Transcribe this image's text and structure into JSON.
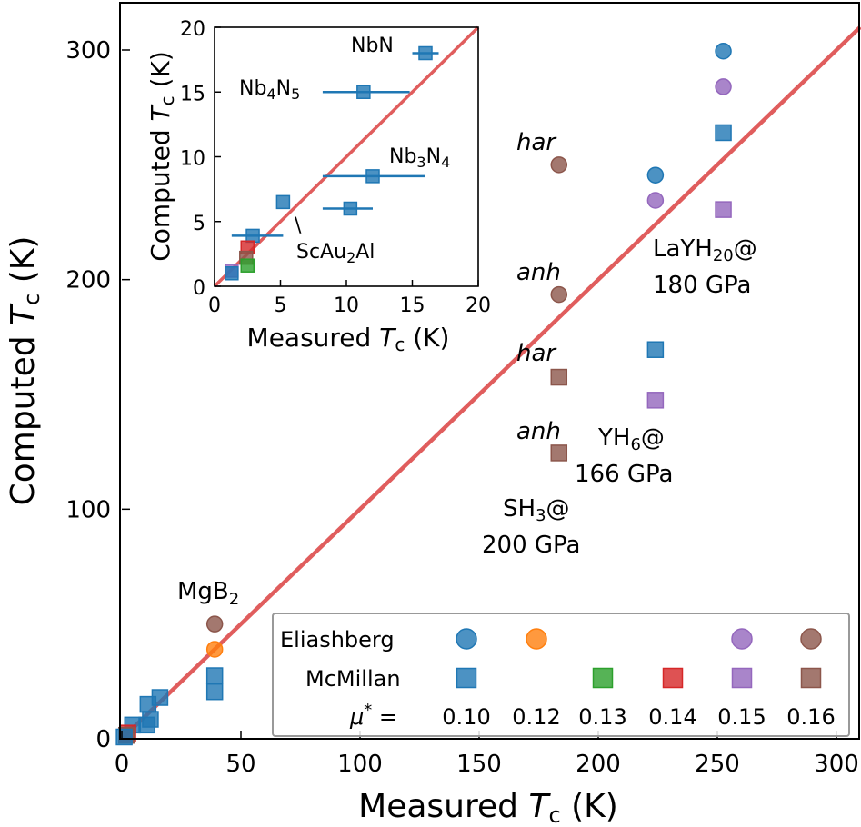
{
  "colors": {
    "mu_010": "#1f77b4",
    "mu_012": "#ff7f0e",
    "mu_013": "#2ca02c",
    "mu_014": "#d62728",
    "mu_015": "#9467bd",
    "mu_016": "#8c564b",
    "diagonal": "#d62728"
  },
  "chart_data": [
    {
      "id": "main",
      "type": "scatter",
      "title": "",
      "xlabel": "Measured",
      "ylabel": "Computed",
      "x_sym": "T",
      "x_sub": "c",
      "y_sym": "T",
      "y_sub": "c",
      "unit": "(K)",
      "xlim": [
        0,
        320
      ],
      "ylim": [
        0,
        320
      ],
      "xticks": [
        "0",
        "50",
        "100",
        "150",
        "200",
        "250",
        "300"
      ],
      "xtick_values": [
        0,
        50,
        100,
        150,
        200,
        250,
        300
      ],
      "yticks": [
        "0",
        "100",
        "200",
        "300"
      ],
      "ytick_values": [
        0,
        100,
        200,
        300
      ],
      "diagonal": true,
      "points": [
        {
          "x": 252.5,
          "y": 299.5,
          "marker": "circle",
          "mu": "mu_010"
        },
        {
          "x": 252.5,
          "y": 284.0,
          "marker": "circle",
          "mu": "mu_015"
        },
        {
          "x": 252.5,
          "y": 264.0,
          "marker": "square",
          "mu": "mu_010"
        },
        {
          "x": 252.5,
          "y": 230.5,
          "marker": "square",
          "mu": "mu_015"
        },
        {
          "x": 224.0,
          "y": 245.5,
          "marker": "circle",
          "mu": "mu_010"
        },
        {
          "x": 224.0,
          "y": 234.5,
          "marker": "circle",
          "mu": "mu_015"
        },
        {
          "x": 224.0,
          "y": 169.5,
          "marker": "square",
          "mu": "mu_010"
        },
        {
          "x": 224.0,
          "y": 147.5,
          "marker": "square",
          "mu": "mu_015"
        },
        {
          "x": 183.5,
          "y": 250.0,
          "marker": "circle",
          "mu": "mu_016"
        },
        {
          "x": 183.5,
          "y": 193.5,
          "marker": "circle",
          "mu": "mu_016"
        },
        {
          "x": 183.5,
          "y": 157.5,
          "marker": "square",
          "mu": "mu_016"
        },
        {
          "x": 183.5,
          "y": 124.5,
          "marker": "square",
          "mu": "mu_016"
        },
        {
          "x": 39.0,
          "y": 50.0,
          "marker": "circle",
          "mu": "mu_016"
        },
        {
          "x": 39.0,
          "y": 39.0,
          "marker": "circle",
          "mu": "mu_012"
        },
        {
          "x": 39.0,
          "y": 27.5,
          "marker": "square",
          "mu": "mu_010"
        },
        {
          "x": 39.0,
          "y": 20.5,
          "marker": "square",
          "mu": "mu_010"
        },
        {
          "x": 16.0,
          "y": 18.0,
          "marker": "square",
          "mu": "mu_010"
        },
        {
          "x": 11.0,
          "y": 15.0,
          "marker": "square",
          "mu": "mu_010"
        },
        {
          "x": 12.0,
          "y": 8.5,
          "marker": "square",
          "mu": "mu_010"
        },
        {
          "x": 10.5,
          "y": 6.0,
          "marker": "square",
          "mu": "mu_010"
        },
        {
          "x": 4.5,
          "y": 6.0,
          "marker": "square",
          "mu": "mu_010"
        },
        {
          "x": 2.5,
          "y": 2.5,
          "marker": "square",
          "mu": "mu_014"
        },
        {
          "x": 2.0,
          "y": 1.5,
          "marker": "square",
          "mu": "mu_016"
        },
        {
          "x": 1.0,
          "y": 0.8,
          "marker": "square",
          "mu": "mu_010"
        }
      ]
    },
    {
      "id": "inset",
      "type": "scatter",
      "title": "",
      "xlabel": "Measured",
      "ylabel": "Computed",
      "x_sym": "T",
      "x_sub": "c",
      "y_sym": "T",
      "y_sub": "c",
      "unit": "(K)",
      "xlim": [
        0,
        20
      ],
      "ylim": [
        0,
        20
      ],
      "xticks": [
        "0",
        "5",
        "10",
        "15",
        "20"
      ],
      "xtick_values": [
        0,
        5,
        10,
        15,
        20
      ],
      "yticks": [
        "0",
        "5",
        "10",
        "15",
        "20"
      ],
      "ytick_values": [
        0,
        5,
        10,
        15,
        20
      ],
      "diagonal": true,
      "points": [
        {
          "x": 16.0,
          "y": 18.0,
          "xerr": [
            15.0,
            17.0
          ],
          "marker": "square",
          "mu": "mu_010"
        },
        {
          "x": 11.3,
          "y": 15.0,
          "xerr": [
            8.2,
            14.8
          ],
          "marker": "square",
          "mu": "mu_010"
        },
        {
          "x": 12.0,
          "y": 8.5,
          "xerr": [
            8.2,
            16.0
          ],
          "marker": "square",
          "mu": "mu_010"
        },
        {
          "x": 10.3,
          "y": 6.0,
          "xerr": [
            8.2,
            12.0
          ],
          "marker": "square",
          "mu": "mu_010"
        },
        {
          "x": 5.2,
          "y": 6.5,
          "marker": "square",
          "mu": "mu_010"
        },
        {
          "x": 2.9,
          "y": 3.9,
          "xerr": [
            1.3,
            5.2
          ],
          "marker": "square",
          "mu": "mu_010"
        },
        {
          "x": 2.5,
          "y": 3.0,
          "marker": "square",
          "mu": "mu_014"
        },
        {
          "x": 2.4,
          "y": 2.2,
          "marker": "square",
          "mu": "mu_016"
        },
        {
          "x": 2.5,
          "y": 1.6,
          "marker": "square",
          "mu": "mu_013"
        },
        {
          "x": 1.3,
          "y": 1.2,
          "marker": "square",
          "mu": "mu_015"
        },
        {
          "x": 1.3,
          "y": 1.0,
          "marker": "square",
          "mu": "mu_010"
        }
      ]
    }
  ],
  "labels": {
    "lah20_line1_pre": "LaYH",
    "lah20_line1_sub": "20",
    "lah20_line1_post": "@",
    "lah20_line2": "180 GPa",
    "yh6_line1_pre": "YH",
    "yh6_line1_sub": "6",
    "yh6_line1_post": "@",
    "yh6_line2": "166 GPa",
    "sh3_line1_pre": "SH",
    "sh3_line1_sub": "3",
    "sh3_line1_post": "@",
    "sh3_line2": "200 GPa",
    "mgb2_pre": "MgB",
    "mgb2_sub": "2",
    "har_top": "har",
    "anh_top": "anh",
    "har_bottom": "har",
    "anh_bottom": "anh",
    "nbn": "NbN",
    "nb4n5_a": "Nb",
    "nb4n5_s1": "4",
    "nb4n5_b": "N",
    "nb4n5_s2": "5",
    "nb3n4_a": "Nb",
    "nb3n4_s1": "3",
    "nb3n4_b": "N",
    "nb3n4_s2": "4",
    "scau2al_a": "ScAu",
    "scau2al_s": "2",
    "scau2al_b": "Al",
    "scau2al_tick": "\\"
  },
  "legend": {
    "eliashberg_label": "Eliashberg",
    "mcmillan_label": "McMillan",
    "mu_label_sym": "μ",
    "mu_label_sup": "*",
    "mu_label_eq": "=",
    "mu_values": [
      "0.10",
      "0.12",
      "0.13",
      "0.14",
      "0.15",
      "0.16"
    ],
    "eliashberg_present": [
      true,
      true,
      false,
      false,
      true,
      true
    ],
    "mcmillan_present": [
      true,
      false,
      true,
      true,
      true,
      true
    ]
  }
}
